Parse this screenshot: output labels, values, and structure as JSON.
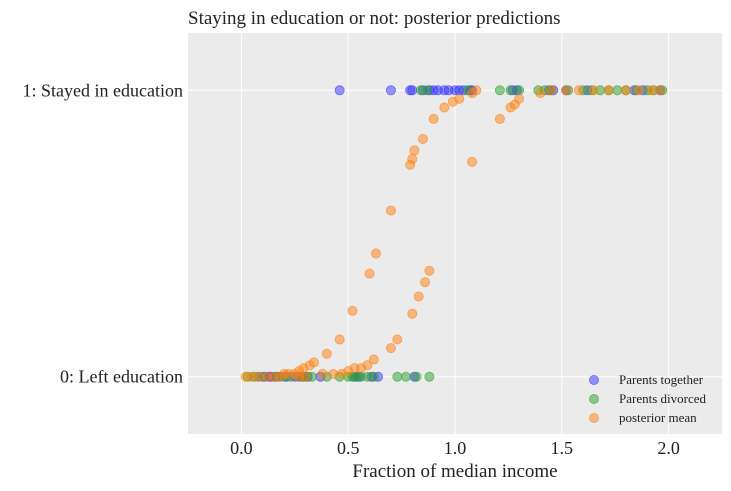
{
  "chart_data": {
    "type": "scatter",
    "title": "Staying in education or not: posterior predictions",
    "xlabel": "Fraction of median income",
    "ylabel": "",
    "xlim": [
      -0.25,
      2.25
    ],
    "ylim": [
      -0.2,
      1.2
    ],
    "x_ticks": [
      0.0,
      0.5,
      1.0,
      1.5,
      2.0
    ],
    "x_tick_labels": [
      "0.0",
      "0.5",
      "1.0",
      "1.5",
      "2.0"
    ],
    "y_ticks": [
      0,
      1
    ],
    "y_tick_labels": [
      "0: Left education",
      "1: Stayed in education"
    ],
    "grid": true,
    "background": "#ebebeb",
    "legend_position": "bottom-right",
    "series": [
      {
        "name": "Parents together",
        "color": "#3333ff",
        "points": [
          [
            0.08,
            0
          ],
          [
            0.11,
            0
          ],
          [
            0.13,
            0
          ],
          [
            0.14,
            0
          ],
          [
            0.16,
            0
          ],
          [
            0.18,
            0
          ],
          [
            0.21,
            0
          ],
          [
            0.25,
            0
          ],
          [
            0.27,
            0
          ],
          [
            0.29,
            0
          ],
          [
            0.31,
            0
          ],
          [
            0.37,
            0
          ],
          [
            0.53,
            0
          ],
          [
            0.55,
            0
          ],
          [
            0.61,
            0
          ],
          [
            0.64,
            0
          ],
          [
            0.81,
            0
          ],
          [
            0.46,
            1
          ],
          [
            0.7,
            1
          ],
          [
            0.79,
            1
          ],
          [
            0.8,
            1
          ],
          [
            0.85,
            1
          ],
          [
            0.88,
            1
          ],
          [
            0.9,
            1
          ],
          [
            0.92,
            1
          ],
          [
            0.95,
            1
          ],
          [
            0.97,
            1
          ],
          [
            1.0,
            1
          ],
          [
            1.02,
            1
          ],
          [
            1.04,
            1
          ],
          [
            1.07,
            1
          ],
          [
            1.08,
            1
          ],
          [
            1.27,
            1
          ],
          [
            1.29,
            1
          ],
          [
            1.44,
            1
          ],
          [
            1.46,
            1
          ],
          [
            1.52,
            1
          ],
          [
            1.62,
            1
          ],
          [
            1.84,
            1
          ],
          [
            1.88,
            1
          ],
          [
            1.96,
            1
          ]
        ]
      },
      {
        "name": "Parents divorced",
        "color": "#2ca02c",
        "points": [
          [
            0.03,
            0
          ],
          [
            0.06,
            0
          ],
          [
            0.1,
            0
          ],
          [
            0.16,
            0
          ],
          [
            0.2,
            0
          ],
          [
            0.23,
            0
          ],
          [
            0.28,
            0
          ],
          [
            0.3,
            0
          ],
          [
            0.33,
            0
          ],
          [
            0.4,
            0
          ],
          [
            0.46,
            0
          ],
          [
            0.5,
            0
          ],
          [
            0.52,
            0
          ],
          [
            0.54,
            0
          ],
          [
            0.56,
            0
          ],
          [
            0.59,
            0
          ],
          [
            0.62,
            0
          ],
          [
            0.73,
            0
          ],
          [
            0.77,
            0
          ],
          [
            0.82,
            0
          ],
          [
            0.88,
            0
          ],
          [
            0.84,
            1
          ],
          [
            0.87,
            1
          ],
          [
            1.06,
            1
          ],
          [
            1.21,
            1
          ],
          [
            1.26,
            1
          ],
          [
            1.3,
            1
          ],
          [
            1.39,
            1
          ],
          [
            1.42,
            1
          ],
          [
            1.45,
            1
          ],
          [
            1.53,
            1
          ],
          [
            1.6,
            1
          ],
          [
            1.64,
            1
          ],
          [
            1.68,
            1
          ],
          [
            1.72,
            1
          ],
          [
            1.76,
            1
          ],
          [
            1.8,
            1
          ],
          [
            1.85,
            1
          ],
          [
            1.9,
            1
          ],
          [
            1.93,
            1
          ],
          [
            1.97,
            1
          ]
        ]
      },
      {
        "name": "posterior mean",
        "color": "#ff7f0e",
        "points": [
          [
            0.02,
            0.0
          ],
          [
            0.05,
            0.0
          ],
          [
            0.08,
            0.0
          ],
          [
            0.12,
            0.0
          ],
          [
            0.15,
            0.0
          ],
          [
            0.18,
            0.0
          ],
          [
            0.2,
            0.01
          ],
          [
            0.22,
            0.01
          ],
          [
            0.25,
            0.01
          ],
          [
            0.27,
            0.02
          ],
          [
            0.29,
            0.03
          ],
          [
            0.32,
            0.04
          ],
          [
            0.34,
            0.05
          ],
          [
            0.4,
            0.08
          ],
          [
            0.46,
            0.13
          ],
          [
            0.52,
            0.23
          ],
          [
            0.6,
            0.36
          ],
          [
            0.63,
            0.43
          ],
          [
            0.7,
            0.58
          ],
          [
            0.79,
            0.74
          ],
          [
            0.8,
            0.76
          ],
          [
            0.81,
            0.79
          ],
          [
            0.85,
            0.83
          ],
          [
            0.9,
            0.9
          ],
          [
            0.95,
            0.94
          ],
          [
            0.99,
            0.96
          ],
          [
            1.02,
            0.97
          ],
          [
            1.08,
            0.99
          ],
          [
            1.1,
            1.0
          ],
          [
            0.27,
            0.0
          ],
          [
            0.3,
            0.0
          ],
          [
            0.38,
            0.01
          ],
          [
            0.43,
            0.01
          ],
          [
            0.47,
            0.01
          ],
          [
            0.5,
            0.02
          ],
          [
            0.53,
            0.03
          ],
          [
            0.56,
            0.03
          ],
          [
            0.59,
            0.04
          ],
          [
            0.62,
            0.06
          ],
          [
            0.7,
            0.1
          ],
          [
            0.73,
            0.13
          ],
          [
            0.8,
            0.22
          ],
          [
            0.83,
            0.28
          ],
          [
            0.86,
            0.33
          ],
          [
            0.88,
            0.37
          ],
          [
            1.08,
            0.75
          ],
          [
            1.21,
            0.9
          ],
          [
            1.26,
            0.94
          ],
          [
            1.28,
            0.95
          ],
          [
            1.3,
            0.97
          ],
          [
            1.4,
            0.99
          ],
          [
            1.45,
            1.0
          ],
          [
            1.52,
            1.0
          ],
          [
            1.58,
            1.0
          ],
          [
            1.65,
            1.0
          ],
          [
            1.72,
            1.0
          ],
          [
            1.8,
            1.0
          ],
          [
            1.86,
            1.0
          ],
          [
            1.92,
            1.0
          ],
          [
            1.96,
            1.0
          ]
        ]
      }
    ]
  }
}
